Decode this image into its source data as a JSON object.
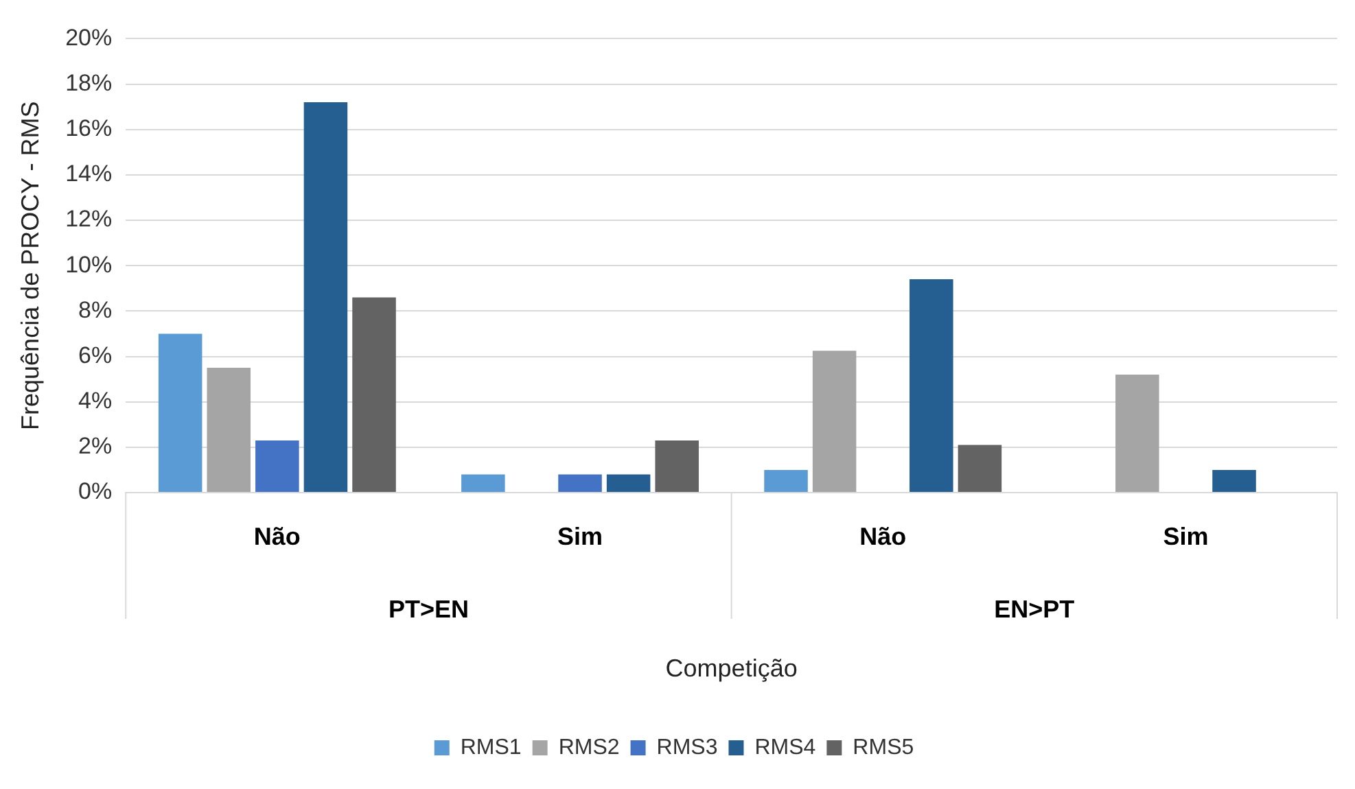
{
  "chart_data": {
    "type": "bar",
    "xlabel": "Competição",
    "ylabel": "Frequência de PROCY - RMS",
    "categories": [
      "Não",
      "Sim",
      "Não",
      "Sim"
    ],
    "annotations": [
      "PT>EN",
      "EN>PT"
    ],
    "series": [
      {
        "name": "RMS1",
        "color": "#5b9bd5",
        "values": [
          7.0,
          0.8,
          1.0,
          0
        ]
      },
      {
        "name": "RMS2",
        "color": "#a5a5a5",
        "values": [
          5.5,
          0,
          6.25,
          5.2
        ]
      },
      {
        "name": "RMS3",
        "color": "#4472c4",
        "values": [
          2.3,
          0.8,
          0,
          0
        ]
      },
      {
        "name": "RMS4",
        "color": "#255e91",
        "values": [
          17.2,
          0.8,
          9.4,
          1.0
        ]
      },
      {
        "name": "RMS5",
        "color": "#636363",
        "values": [
          8.6,
          2.3,
          2.1,
          0
        ]
      }
    ],
    "ylim": [
      0,
      20
    ],
    "yticks": [
      {
        "value": 0,
        "label": "0%"
      },
      {
        "value": 2,
        "label": "2%"
      },
      {
        "value": 4,
        "label": "4%"
      },
      {
        "value": 6,
        "label": "6%"
      },
      {
        "value": 8,
        "label": "8%"
      },
      {
        "value": 10,
        "label": "10%"
      },
      {
        "value": 12,
        "label": "12%"
      },
      {
        "value": 14,
        "label": "14%"
      },
      {
        "value": 16,
        "label": "16%"
      },
      {
        "value": 18,
        "label": "18%"
      },
      {
        "value": 20,
        "label": "20%"
      }
    ],
    "grid": "y",
    "legend": "bottom"
  }
}
